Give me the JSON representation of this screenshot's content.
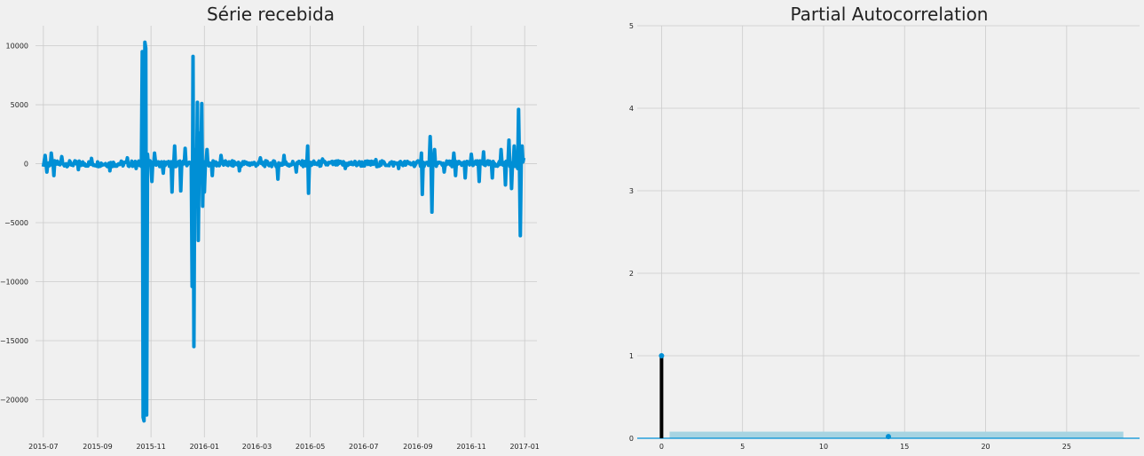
{
  "chart_data": [
    {
      "type": "line",
      "title": "Série recebida",
      "xlabel": "",
      "ylabel": "",
      "x_tick_labels": [
        "2015-07",
        "2015-09",
        "2015-11",
        "2016-01",
        "2016-03",
        "2016-05",
        "2016-07",
        "2016-09",
        "2016-11",
        "2017-01"
      ],
      "y_tick_labels": [
        "10000",
        "5000",
        "0",
        "−5000",
        "−10000",
        "−15000",
        "−20000"
      ],
      "y_ticks": [
        10000,
        5000,
        0,
        -5000,
        -10000,
        -15000,
        -20000
      ],
      "xlim": [
        "2015-06-22",
        "2017-01-15"
      ],
      "ylim": [
        -23200,
        11700
      ],
      "grid": true,
      "line_color": "#008fd5",
      "spikes": [
        {
          "date": "2015-07-03",
          "value": 700
        },
        {
          "date": "2015-07-05",
          "value": -700
        },
        {
          "date": "2015-07-10",
          "value": 900
        },
        {
          "date": "2015-07-13",
          "value": -1000
        },
        {
          "date": "2015-07-22",
          "value": 600
        },
        {
          "date": "2015-08-10",
          "value": -500
        },
        {
          "date": "2015-08-25",
          "value": 450
        },
        {
          "date": "2015-09-15",
          "value": -600
        },
        {
          "date": "2015-10-05",
          "value": 500
        },
        {
          "date": "2015-10-15",
          "value": -400
        },
        {
          "date": "2015-10-22",
          "value": 9500
        },
        {
          "date": "2015-10-23",
          "value": -21500
        },
        {
          "date": "2015-10-24",
          "value": -21800
        },
        {
          "date": "2015-10-25",
          "value": 10300
        },
        {
          "date": "2015-10-26",
          "value": 9800
        },
        {
          "date": "2015-10-27",
          "value": -21300
        },
        {
          "date": "2015-10-28",
          "value": 800
        },
        {
          "date": "2015-11-02",
          "value": -1500
        },
        {
          "date": "2015-11-05",
          "value": 900
        },
        {
          "date": "2015-11-15",
          "value": -800
        },
        {
          "date": "2015-11-25",
          "value": -2400
        },
        {
          "date": "2015-11-28",
          "value": 1500
        },
        {
          "date": "2015-12-05",
          "value": -2300
        },
        {
          "date": "2015-12-10",
          "value": 1300
        },
        {
          "date": "2015-12-18",
          "value": -10400
        },
        {
          "date": "2015-12-19",
          "value": 9100
        },
        {
          "date": "2015-12-20",
          "value": -15500
        },
        {
          "date": "2015-12-21",
          "value": 1200
        },
        {
          "date": "2015-12-23",
          "value": -2000
        },
        {
          "date": "2015-12-24",
          "value": 5200
        },
        {
          "date": "2015-12-25",
          "value": -6500
        },
        {
          "date": "2015-12-27",
          "value": 2600
        },
        {
          "date": "2015-12-29",
          "value": 5100
        },
        {
          "date": "2015-12-30",
          "value": -3600
        },
        {
          "date": "2016-01-01",
          "value": -2400
        },
        {
          "date": "2016-01-04",
          "value": 1200
        },
        {
          "date": "2016-01-10",
          "value": -1000
        },
        {
          "date": "2016-01-20",
          "value": 700
        },
        {
          "date": "2016-02-10",
          "value": -600
        },
        {
          "date": "2016-03-05",
          "value": 500
        },
        {
          "date": "2016-03-25",
          "value": -1300
        },
        {
          "date": "2016-04-01",
          "value": 700
        },
        {
          "date": "2016-04-15",
          "value": -700
        },
        {
          "date": "2016-04-28",
          "value": 1500
        },
        {
          "date": "2016-04-29",
          "value": -2500
        },
        {
          "date": "2016-05-15",
          "value": 400
        },
        {
          "date": "2016-06-10",
          "value": -400
        },
        {
          "date": "2016-07-15",
          "value": 350
        },
        {
          "date": "2016-08-10",
          "value": -400
        },
        {
          "date": "2016-09-05",
          "value": 900
        },
        {
          "date": "2016-09-06",
          "value": -2600
        },
        {
          "date": "2016-09-15",
          "value": 2300
        },
        {
          "date": "2016-09-17",
          "value": -4100
        },
        {
          "date": "2016-09-20",
          "value": 1200
        },
        {
          "date": "2016-10-01",
          "value": -700
        },
        {
          "date": "2016-10-12",
          "value": 900
        },
        {
          "date": "2016-10-14",
          "value": -1000
        },
        {
          "date": "2016-10-25",
          "value": -1200
        },
        {
          "date": "2016-11-01",
          "value": 800
        },
        {
          "date": "2016-11-10",
          "value": -1500
        },
        {
          "date": "2016-11-15",
          "value": 1000
        },
        {
          "date": "2016-11-25",
          "value": -1200
        },
        {
          "date": "2016-12-05",
          "value": 1200
        },
        {
          "date": "2016-12-10",
          "value": -1800
        },
        {
          "date": "2016-12-14",
          "value": 2000
        },
        {
          "date": "2016-12-17",
          "value": -2100
        },
        {
          "date": "2016-12-20",
          "value": 1500
        },
        {
          "date": "2016-12-24",
          "value": -400
        },
        {
          "date": "2016-12-25",
          "value": 4600
        },
        {
          "date": "2016-12-27",
          "value": -6100
        },
        {
          "date": "2016-12-29",
          "value": 1500
        },
        {
          "date": "2016-12-31",
          "value": 500
        }
      ]
    },
    {
      "type": "bar",
      "title": "Partial Autocorrelation",
      "xlabel": "",
      "ylabel": "",
      "x_ticks": [
        0,
        5,
        10,
        15,
        20,
        25
      ],
      "y_ticks": [
        0,
        1,
        2,
        3,
        4,
        5
      ],
      "xlim": [
        -1.5,
        29.5
      ],
      "ylim": [
        0,
        5
      ],
      "grid": true,
      "lags": [
        0,
        14
      ],
      "values": [
        1.0,
        0.02
      ],
      "confidence_band": {
        "from": 0.5,
        "to": 28.5,
        "upper": 0.08
      },
      "stem_color": "#000000",
      "marker_color": "#008fd5",
      "band_color": "#a7d4e2"
    }
  ]
}
